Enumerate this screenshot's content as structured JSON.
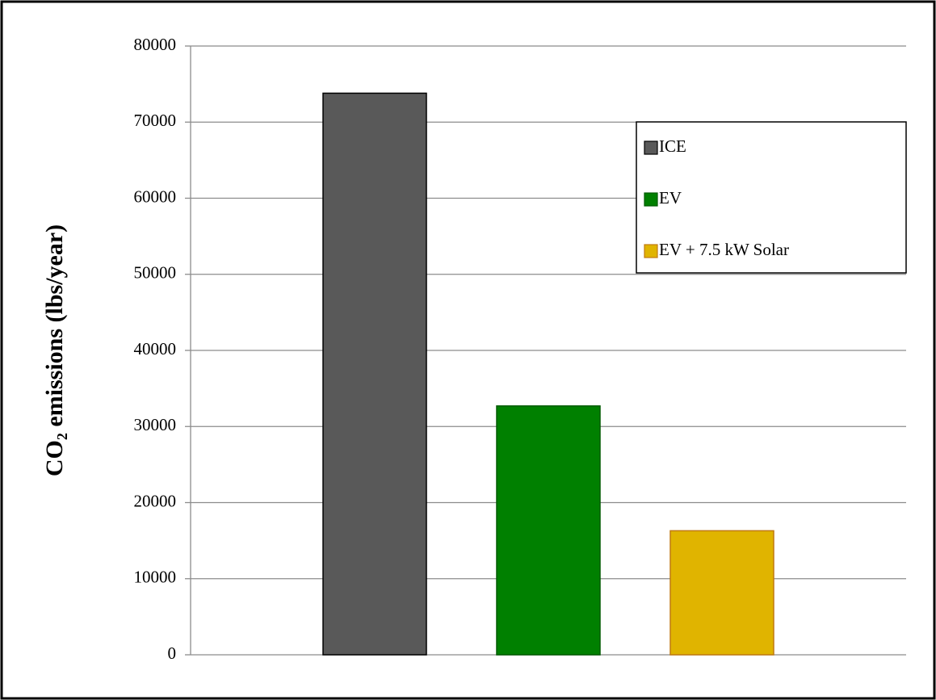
{
  "chart_data": {
    "type": "bar",
    "ylabel": "CO₂ emissions (lbs/year)",
    "categories": [
      null
    ],
    "series": [
      {
        "name": "ICE",
        "color": "#595959",
        "edgecolor": "#000000",
        "values": [
          73800
        ]
      },
      {
        "name": "EV",
        "color": "#008000",
        "edgecolor": "#005a00",
        "values": [
          32700
        ]
      },
      {
        "name": "EV + 7.5 kW Solar",
        "color": "#e0b400",
        "edgecolor": "#c07a10",
        "values": [
          16300
        ]
      }
    ],
    "ylim": [
      0,
      80000
    ],
    "yticks": [
      0,
      10000,
      20000,
      30000,
      40000,
      50000,
      60000,
      70000,
      80000
    ],
    "grid": true,
    "legend": "upper right"
  }
}
